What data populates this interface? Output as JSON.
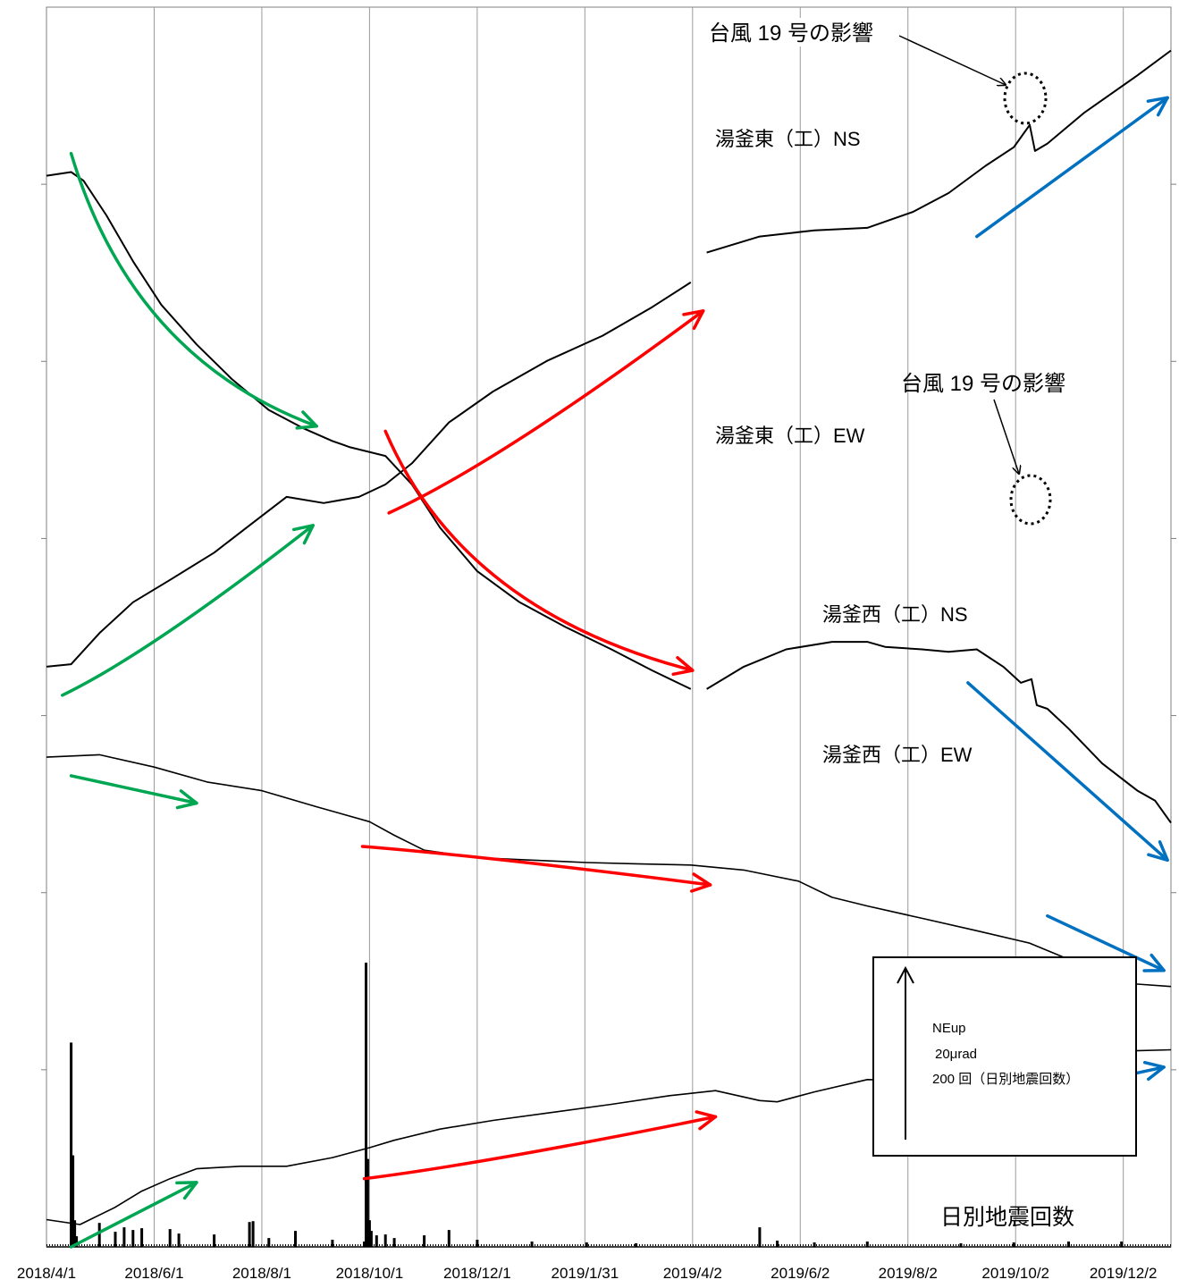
{
  "chart_data": {
    "type": "line",
    "x_ticks": [
      "2018/4/1",
      "2018/6/1",
      "2018/8/1",
      "2018/10/1",
      "2018/12/1",
      "2019/1/31",
      "2019/4/2",
      "2019/6/2",
      "2019/8/2",
      "2019/10/2",
      "2019/12/2"
    ],
    "x_start": "2018/4/1",
    "x_end": "2019/12/29",
    "series": [
      {
        "name": "湯釜東（工）NS",
        "color": "#000000",
        "gaps": [
          [
            "2019/4/2",
            "2019/4/10"
          ]
        ],
        "points": [
          [
            "2018/4/1",
            136
          ],
          [
            "2018/4/15",
            133
          ],
          [
            "2018/4/22",
            140
          ],
          [
            "2018/5/5",
            168
          ],
          [
            "2018/5/20",
            205
          ],
          [
            "2018/6/5",
            240
          ],
          [
            "2018/6/25",
            272
          ],
          [
            "2018/7/15",
            300
          ],
          [
            "2018/8/5",
            325
          ],
          [
            "2018/8/25",
            340
          ],
          [
            "2018/9/10",
            350
          ],
          [
            "2018/9/20",
            355
          ],
          [
            "2018/10/10",
            362
          ],
          [
            "2018/10/25",
            385
          ],
          [
            "2018/11/10",
            420
          ],
          [
            "2018/12/1",
            455
          ],
          [
            "2018/12/25",
            480
          ],
          [
            "2019/1/20",
            500
          ],
          [
            "2019/2/15",
            518
          ],
          [
            "2019/3/10",
            535
          ],
          [
            "2019/4/1",
            550
          ],
          [
            "2019/4/10",
            550
          ],
          [
            "2019/5/1",
            532
          ],
          [
            "2019/5/25",
            518
          ],
          [
            "2019/6/20",
            512
          ],
          [
            "2019/7/10",
            512
          ],
          [
            "2019/7/20",
            516
          ],
          [
            "2019/8/10",
            518
          ],
          [
            "2019/8/25",
            520
          ],
          [
            "2019/9/10",
            518
          ],
          [
            "2019/9/25",
            532
          ],
          [
            "2019/10/5",
            545
          ],
          [
            "2019/10/11",
            542
          ],
          [
            "2019/10/14",
            563
          ],
          [
            "2019/10/20",
            566
          ],
          [
            "2019/11/1",
            582
          ],
          [
            "2019/11/20",
            610
          ],
          [
            "2019/12/10",
            632
          ],
          [
            "2019/12/20",
            640
          ],
          [
            "2019/12/29",
            658
          ]
        ]
      },
      {
        "name": "湯釜東（工）EW",
        "color": "#000000",
        "gaps": [
          [
            "2019/4/2",
            "2019/4/10"
          ]
        ],
        "points": [
          [
            "2018/4/1",
            532
          ],
          [
            "2018/4/15",
            530
          ],
          [
            "2018/5/1",
            505
          ],
          [
            "2018/5/20",
            480
          ],
          [
            "2018/6/10",
            462
          ],
          [
            "2018/7/5",
            440
          ],
          [
            "2018/7/25",
            418
          ],
          [
            "2018/8/15",
            395
          ],
          [
            "2018/9/5",
            400
          ],
          [
            "2018/9/25",
            395
          ],
          [
            "2018/10/10",
            385
          ],
          [
            "2018/10/25",
            368
          ],
          [
            "2018/11/15",
            335
          ],
          [
            "2018/12/10",
            310
          ],
          [
            "2019/1/10",
            285
          ],
          [
            "2019/2/10",
            265
          ],
          [
            "2019/3/10",
            242
          ],
          [
            "2019/4/1",
            222
          ],
          [
            "2019/4/10",
            198
          ],
          [
            "2019/5/10",
            185
          ],
          [
            "2019/6/10",
            180
          ],
          [
            "2019/7/10",
            178
          ],
          [
            "2019/8/5",
            165
          ],
          [
            "2019/8/25",
            150
          ],
          [
            "2019/9/15",
            128
          ],
          [
            "2019/10/1",
            113
          ],
          [
            "2019/10/10",
            95
          ],
          [
            "2019/10/13",
            116
          ],
          [
            "2019/10/20",
            110
          ],
          [
            "2019/11/10",
            85
          ],
          [
            "2019/12/10",
            55
          ],
          [
            "2019/12/29",
            35
          ]
        ]
      },
      {
        "name": "湯釜西（工）NS",
        "color": "#000000",
        "points": [
          [
            "2018/4/1",
            605
          ],
          [
            "2018/5/1",
            603
          ],
          [
            "2018/6/1",
            613
          ],
          [
            "2018/7/1",
            625
          ],
          [
            "2018/8/1",
            632
          ],
          [
            "2018/9/1",
            645
          ],
          [
            "2018/10/1",
            657
          ],
          [
            "2018/10/15",
            668
          ],
          [
            "2018/11/1",
            680
          ],
          [
            "2018/12/1",
            686
          ],
          [
            "2019/1/1",
            688
          ],
          [
            "2019/2/1",
            690
          ],
          [
            "2019/3/1",
            691
          ],
          [
            "2019/4/1",
            692
          ],
          [
            "2019/5/1",
            696
          ],
          [
            "2019/6/1",
            705
          ],
          [
            "2019/6/20",
            718
          ],
          [
            "2019/7/10",
            725
          ],
          [
            "2019/8/10",
            735
          ],
          [
            "2019/9/10",
            745
          ],
          [
            "2019/10/10",
            755
          ],
          [
            "2019/11/1",
            768
          ],
          [
            "2019/11/20",
            783
          ],
          [
            "2019/12/10",
            788
          ],
          [
            "2019/12/29",
            790
          ]
        ]
      },
      {
        "name": "湯釜西（工）EW",
        "color": "#000000",
        "points": [
          [
            "2018/4/1",
            978
          ],
          [
            "2018/4/20",
            982
          ],
          [
            "2018/5/10",
            968
          ],
          [
            "2018/5/25",
            955
          ],
          [
            "2018/6/10",
            945
          ],
          [
            "2018/6/25",
            937
          ],
          [
            "2018/7/20",
            935
          ],
          [
            "2018/8/15",
            935
          ],
          [
            "2018/9/10",
            928
          ],
          [
            "2018/10/1",
            920
          ],
          [
            "2018/10/15",
            914
          ],
          [
            "2018/11/10",
            905
          ],
          [
            "2018/12/10",
            898
          ],
          [
            "2019/1/10",
            892
          ],
          [
            "2019/2/15",
            885
          ],
          [
            "2019/3/20",
            878
          ],
          [
            "2019/4/15",
            874
          ],
          [
            "2019/5/10",
            882
          ],
          [
            "2019/5/20",
            883
          ],
          [
            "2019/6/10",
            875
          ],
          [
            "2019/7/10",
            865
          ],
          [
            "2019/8/10",
            866
          ],
          [
            "2019/9/5",
            863
          ],
          [
            "2019/9/25",
            855
          ],
          [
            "2019/10/20",
            852
          ],
          [
            "2019/11/10",
            846
          ],
          [
            "2019/12/1",
            842
          ],
          [
            "2019/12/29",
            841
          ]
        ]
      },
      {
        "name": "日別地震回数",
        "type": "bar",
        "color": "#000000",
        "points": [
          [
            "2018/4/15",
            230
          ],
          [
            "2018/4/16",
            103
          ],
          [
            "2018/4/17",
            30
          ],
          [
            "2018/4/18",
            12
          ],
          [
            "2018/5/1",
            27
          ],
          [
            "2018/5/10",
            17
          ],
          [
            "2018/5/15",
            22
          ],
          [
            "2018/5/20",
            19
          ],
          [
            "2018/5/25",
            21
          ],
          [
            "2018/6/10",
            20
          ],
          [
            "2018/6/15",
            15
          ],
          [
            "2018/7/5",
            14
          ],
          [
            "2018/7/25",
            28
          ],
          [
            "2018/7/27",
            29
          ],
          [
            "2018/8/5",
            10
          ],
          [
            "2018/8/20",
            18
          ],
          [
            "2018/9/10",
            8
          ],
          [
            "2018/9/28",
            6
          ],
          [
            "2018/9/29",
            320
          ],
          [
            "2018/9/30",
            99
          ],
          [
            "2018/10/1",
            30
          ],
          [
            "2018/10/2",
            18
          ],
          [
            "2018/10/5",
            13
          ],
          [
            "2018/10/10",
            14
          ],
          [
            "2018/10/15",
            10
          ],
          [
            "2018/11/1",
            13
          ],
          [
            "2018/11/15",
            19
          ],
          [
            "2018/12/1",
            8
          ],
          [
            "2019/1/1",
            6
          ],
          [
            "2019/2/1",
            5
          ],
          [
            "2019/3/1",
            4
          ],
          [
            "2019/5/10",
            22
          ],
          [
            "2019/5/20",
            7
          ],
          [
            "2019/6/10",
            5
          ],
          [
            "2019/7/10",
            6
          ],
          [
            "2019/9/1",
            4
          ],
          [
            "2019/10/1",
            5
          ],
          [
            "2019/11/1",
            6
          ],
          [
            "2019/12/1",
            6
          ]
        ]
      }
    ],
    "trend_arrows": [
      {
        "color": "#00a651",
        "from": [
          "2018/4/15",
          118
        ],
        "to": [
          "2018/9/1",
          338
        ],
        "curve": "convex"
      },
      {
        "color": "#00a651",
        "from": [
          "2018/4/10",
          555
        ],
        "to": [
          "2018/8/30",
          418
        ],
        "curve": "concave"
      },
      {
        "color": "#00a651",
        "from": [
          "2018/4/15",
          620
        ],
        "to": [
          "2018/6/25",
          642
        ],
        "curve": "straight"
      },
      {
        "color": "#00a651",
        "from": [
          "2018/4/15",
          1000
        ],
        "to": [
          "2018/6/25",
          948
        ],
        "curve": "straight"
      },
      {
        "color": "#ff0000",
        "from": [
          "2018/10/10",
          342
        ],
        "to": [
          "2019/4/2",
          535
        ],
        "curve": "convex"
      },
      {
        "color": "#ff0000",
        "from": [
          "2018/10/12",
          408
        ],
        "to": [
          "2019/4/8",
          245
        ],
        "curve": "concave"
      },
      {
        "color": "#ff0000",
        "from": [
          "2018/9/27",
          677
        ],
        "to": [
          "2019/4/12",
          708
        ],
        "curve": "concave"
      },
      {
        "color": "#ff0000",
        "from": [
          "2018/9/28",
          945
        ],
        "to": [
          "2019/4/15",
          895
        ],
        "curve": "concave"
      },
      {
        "color": "#0070c0",
        "from": [
          "2019/9/10",
          185
        ],
        "to": [
          "2019/12/27",
          73
        ],
        "curve": "straight"
      },
      {
        "color": "#0070c0",
        "from": [
          "2019/9/5",
          545
        ],
        "to": [
          "2019/12/27",
          688
        ],
        "curve": "straight"
      },
      {
        "color": "#0070c0",
        "from": [
          "2019/10/20",
          733
        ],
        "to": [
          "2019/12/25",
          777
        ],
        "curve": "straight"
      },
      {
        "color": "#0070c0",
        "from": [
          "2019/10/15",
          877
        ],
        "to": [
          "2019/12/25",
          855
        ],
        "curve": "straight"
      }
    ],
    "annotations": [
      {
        "text": "台風 19 号の影響",
        "target_series": "湯釜東（工）NS",
        "date": "2019/10/11"
      },
      {
        "text": "台風 19 号の影響",
        "target_series": "湯釜東（工）EW",
        "date": "2019/10/12"
      }
    ],
    "scale_legend": {
      "lines": [
        "NEup",
        "20μrad",
        "200 回（日別地震回数）"
      ]
    },
    "grid": true
  }
}
